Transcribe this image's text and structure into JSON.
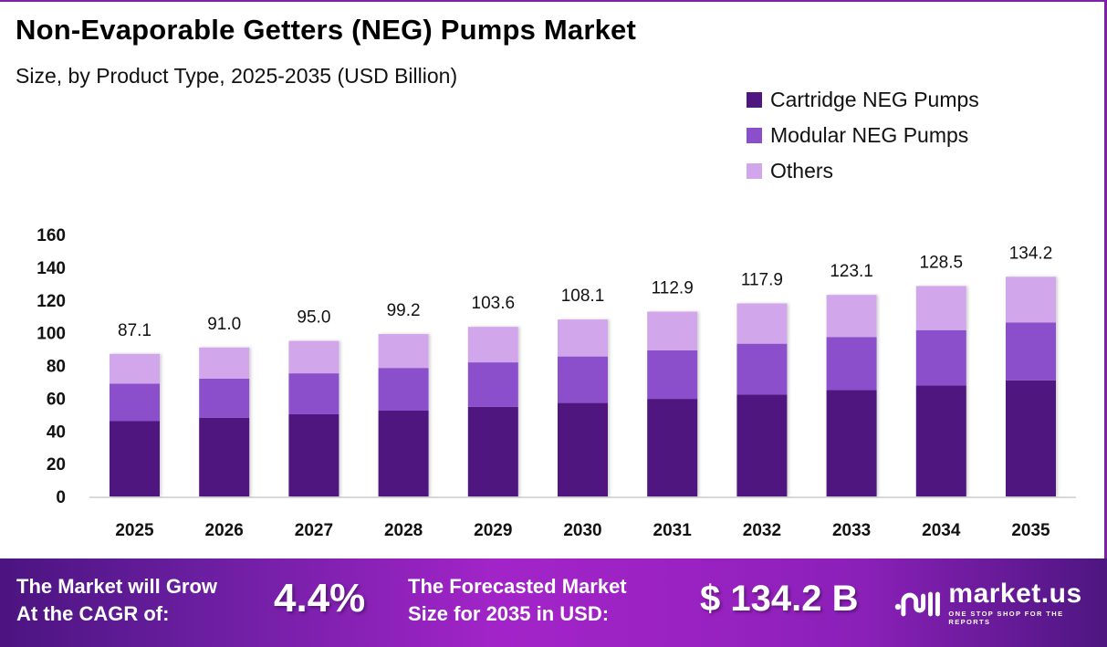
{
  "header": {
    "title": "Non-Evaporable Getters (NEG) Pumps Market",
    "subtitle": "Size, by Product Type, 2025-2035 (USD Billion)"
  },
  "colors": {
    "cartridge": "#4f1680",
    "modular": "#8b4fcc",
    "others": "#d2a6ea",
    "frame": "#7b22a8",
    "axis": "#d9d9d9"
  },
  "chart_data": {
    "type": "bar",
    "stacked": true,
    "title": "Non-Evaporable Getters (NEG) Pumps Market",
    "subtitle": "Size, by Product Type, 2025-2035 (USD Billion)",
    "xlabel": "",
    "ylabel": "",
    "ylim": [
      0,
      160
    ],
    "yticks": [
      0,
      20,
      40,
      60,
      80,
      100,
      120,
      140,
      160
    ],
    "grid": false,
    "legend_position": "top-right",
    "categories": [
      "2025",
      "2026",
      "2027",
      "2028",
      "2029",
      "2030",
      "2031",
      "2032",
      "2033",
      "2034",
      "2035"
    ],
    "series": [
      {
        "name": "Cartridge NEG Pumps",
        "values": [
          46.0,
          48.1,
          50.2,
          52.4,
          54.7,
          57.1,
          59.6,
          62.3,
          65.0,
          67.8,
          70.9
        ]
      },
      {
        "name": "Modular NEG Pumps",
        "values": [
          22.9,
          23.9,
          25.0,
          26.1,
          27.2,
          28.4,
          29.7,
          31.0,
          32.4,
          33.8,
          35.3
        ]
      },
      {
        "name": "Others",
        "values": [
          18.2,
          19.0,
          19.8,
          20.7,
          21.7,
          22.6,
          23.6,
          24.6,
          25.7,
          26.9,
          28.0
        ]
      }
    ],
    "totals": [
      87.1,
      91.0,
      95.0,
      99.2,
      103.6,
      108.1,
      112.9,
      117.9,
      123.1,
      128.5,
      134.2
    ],
    "total_labels": [
      "87.1",
      "91.0",
      "95.0",
      "99.2",
      "103.6",
      "108.1",
      "112.9",
      "117.9",
      "123.1",
      "128.5",
      "134.2"
    ]
  },
  "footer": {
    "cagr_label_line1": "The Market will Grow",
    "cagr_label_line2": "At the CAGR of:",
    "cagr_value": "4.4%",
    "size_label_line1": "The Forecasted Market",
    "size_label_line2": "Size for 2035 in USD:",
    "size_value": "$ 134.2 B",
    "logo_name": "market.us",
    "logo_tagline": "ONE STOP SHOP FOR THE REPORTS",
    "logo_icon": "market-us-logo-icon"
  }
}
